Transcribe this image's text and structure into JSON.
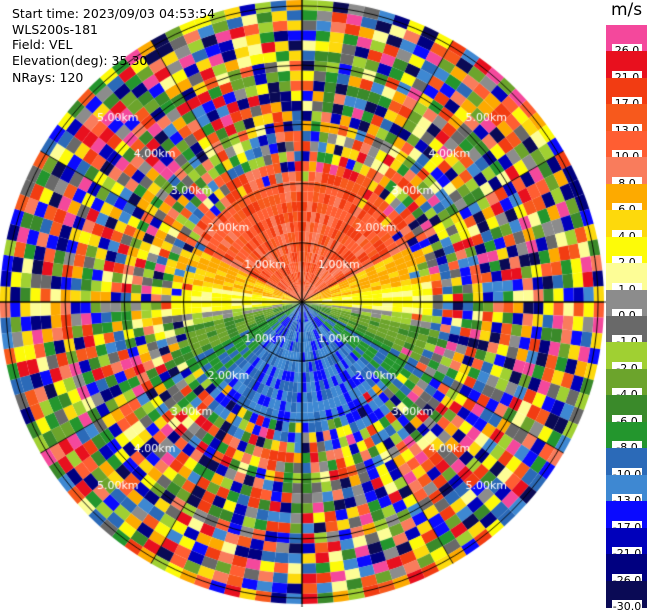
{
  "header": {
    "start_time": "Start time: 2023/09/03 04:53:54",
    "instrument": "WLS200s-181",
    "field": "Field: VEL",
    "elevation": "Elevation(deg): 35.30",
    "nrays": "NRays: 120"
  },
  "colorbar": {
    "unit": "m/s",
    "levels": [
      {
        "label": "26.0",
        "color": "#f4489c"
      },
      {
        "label": "21.0",
        "color": "#e8101e"
      },
      {
        "label": "17.0",
        "color": "#f23c12"
      },
      {
        "label": "13.0",
        "color": "#f7591c"
      },
      {
        "label": "10.0",
        "color": "#ff5e32"
      },
      {
        "label": "8.0",
        "color": "#f97c5c"
      },
      {
        "label": "6.0",
        "color": "#fdaa00"
      },
      {
        "label": "4.0",
        "color": "#fdd90c"
      },
      {
        "label": "2.0",
        "color": "#fdfb08"
      },
      {
        "label": "1.0",
        "color": "#fdfd96"
      },
      {
        "label": "0.0",
        "color": "#8c8c8c"
      },
      {
        "label": "-1.0",
        "color": "#696969"
      },
      {
        "label": "-2.0",
        "color": "#a0d032"
      },
      {
        "label": "-4.0",
        "color": "#6ca42c"
      },
      {
        "label": "-6.0",
        "color": "#3a8a2a"
      },
      {
        "label": "-8.0",
        "color": "#23962d"
      },
      {
        "label": "-10.0",
        "color": "#2b6ab8"
      },
      {
        "label": "-13.0",
        "color": "#3e88d2"
      },
      {
        "label": "-17.0",
        "color": "#0a0aff"
      },
      {
        "label": "-21.0",
        "color": "#0000bb"
      },
      {
        "label": "-26.0",
        "color": "#000080"
      },
      {
        "label": "-30.0",
        "color": "#0a0a55"
      }
    ]
  },
  "chart_data": {
    "type": "polar",
    "title": "",
    "rays": 120,
    "range_rings_km": [
      1,
      2,
      3,
      4,
      5
    ],
    "ring_labels": [
      "1.00km",
      "2.00km",
      "3.00km",
      "4.00km",
      "5.00km"
    ],
    "range_gates": 30,
    "max_range_km": 5.1,
    "field_pattern": {
      "description_free": true,
      "inner_valid_range_km": 2.35,
      "north_sector_color": "#ff5e32",
      "south_sector_color": "#2b6ab8",
      "east_west_color": "#fdfb08"
    }
  }
}
